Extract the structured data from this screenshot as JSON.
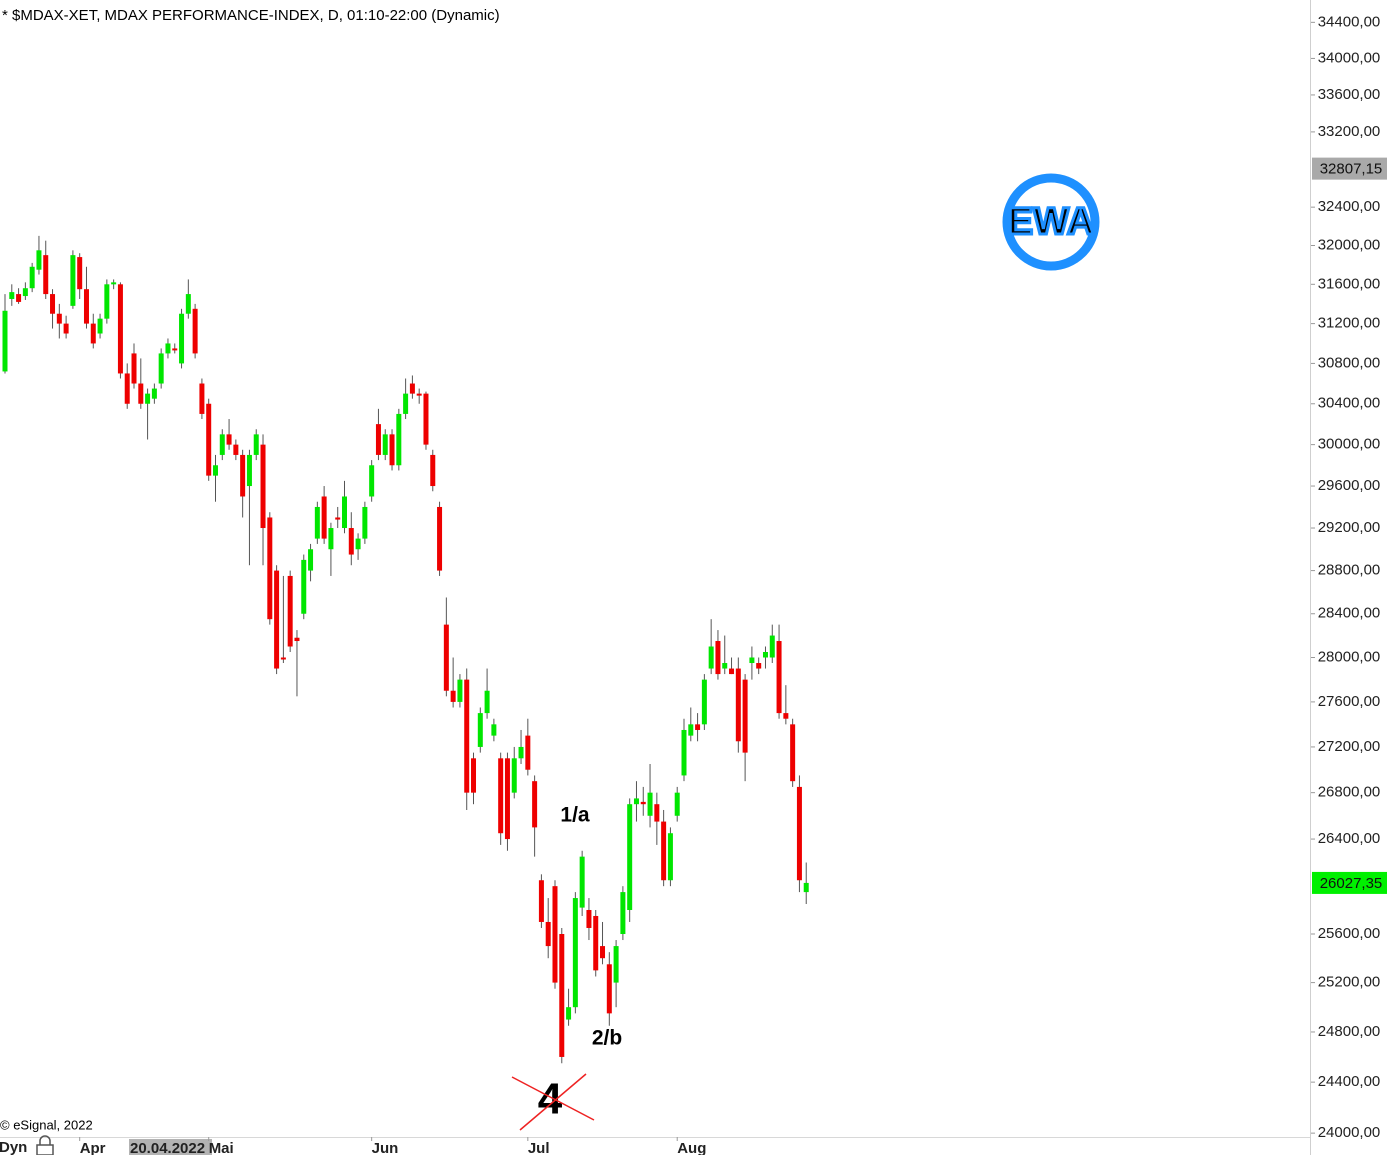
{
  "chart_data": {
    "type": "candlestick",
    "title": "* $MDAX-XET, MDAX PERFORMANCE-INDEX, D, 01:10-22:00 (Dynamic)",
    "copyright": "© eSignal, 2022",
    "interval_label": "Dyn",
    "cursor_date_label": "20.04.2022",
    "logo_text": "EWA",
    "log_scale": true,
    "colors": {
      "up": "#00e600",
      "down": "#ee0000",
      "wick": "#555555"
    },
    "categories": [
      null,
      null,
      null,
      null,
      null,
      null,
      null,
      null,
      null,
      null,
      null,
      null,
      null,
      null,
      null,
      null,
      null,
      null,
      null,
      null,
      null,
      null,
      null,
      null,
      null,
      null,
      null,
      null,
      null,
      null,
      null,
      null,
      null,
      null,
      null,
      null,
      null,
      null,
      null,
      null,
      null,
      null,
      null,
      null,
      null,
      null,
      null,
      null,
      null,
      null,
      null,
      null,
      null,
      null,
      null,
      null,
      null,
      null,
      null,
      null,
      null,
      null,
      null,
      null,
      null,
      null,
      null,
      null,
      null,
      null,
      null,
      null,
      null,
      null,
      null,
      null,
      null,
      null,
      null,
      null,
      null,
      null,
      null,
      null,
      null,
      null,
      null,
      null,
      null,
      null,
      null,
      null,
      null,
      null,
      null,
      null,
      null,
      null,
      null,
      null,
      null,
      null,
      null,
      null,
      null,
      null,
      null,
      null,
      null,
      null,
      null,
      null,
      null,
      null,
      null,
      null,
      null,
      null,
      null
    ],
    "open": [
      30720,
      31450,
      31500,
      31480,
      31560,
      31750,
      31900,
      31500,
      31300,
      31200,
      31380,
      31880,
      31550,
      31200,
      31100,
      31250,
      31600,
      31600,
      30700,
      30900,
      30600,
      30400,
      30450,
      30600,
      30900,
      30950,
      30800,
      31300,
      31350,
      30600,
      30400,
      29700,
      29900,
      30100,
      30000,
      29900,
      29600,
      29900,
      30000,
      29300,
      28800,
      28000,
      28750,
      28180,
      28400,
      28800,
      29100,
      29500,
      29000,
      29300,
      29200,
      29200,
      29000,
      29100,
      29500,
      30200,
      29900,
      30100,
      29800,
      30300,
      30600,
      30500,
      30500,
      29900,
      29400,
      28300,
      27700,
      27600,
      27800,
      27100,
      27200,
      27500,
      27300,
      27100,
      27100,
      26800,
      27100,
      27300,
      26900,
      26050,
      25700,
      26000,
      25600,
      24900,
      25000,
      25820,
      25800,
      25750,
      25500,
      25350,
      25200,
      25600,
      25800,
      26700,
      26720,
      26600,
      26700,
      26550,
      26050,
      26600,
      26950,
      27300,
      27400,
      27400,
      27900,
      28150,
      27900,
      27900,
      27900,
      27800,
      27950,
      27950,
      28000,
      28000,
      28150,
      27500,
      27400,
      26850,
      25950
    ],
    "high": [
      31500,
      31600,
      31560,
      31620,
      31820,
      32100,
      32050,
      31550,
      31400,
      31280,
      31950,
      31920,
      31780,
      31300,
      31300,
      31650,
      31650,
      31620,
      30800,
      31000,
      30850,
      30550,
      30600,
      30950,
      31050,
      31000,
      31350,
      31650,
      31400,
      30650,
      30450,
      29900,
      30150,
      30250,
      30050,
      29950,
      29950,
      30150,
      30100,
      29350,
      28850,
      28750,
      28800,
      28250,
      28950,
      29050,
      29450,
      29600,
      29250,
      29400,
      29650,
      29350,
      29150,
      29450,
      29850,
      30350,
      30150,
      30150,
      30350,
      30650,
      30680,
      30550,
      30520,
      29950,
      29450,
      28550,
      28000,
      27850,
      27900,
      27150,
      27550,
      27900,
      27450,
      27150,
      27150,
      27200,
      27350,
      27450,
      26950,
      26100,
      25900,
      26050,
      25650,
      25150,
      25950,
      26300,
      25900,
      25800,
      25700,
      25450,
      25550,
      26000,
      26750,
      26900,
      26850,
      27050,
      26800,
      26650,
      26500,
      26850,
      27450,
      27550,
      27500,
      27850,
      28350,
      28250,
      28200,
      28000,
      28000,
      27850,
      28100,
      28000,
      28100,
      28300,
      28300,
      27750,
      27450,
      26950,
      26200
    ],
    "low": [
      30700,
      31380,
      31400,
      31440,
      31520,
      31700,
      31450,
      31150,
      31050,
      31050,
      31350,
      31450,
      31150,
      30950,
      31050,
      31200,
      31550,
      30650,
      30350,
      30550,
      30350,
      30050,
      30400,
      30550,
      30850,
      30900,
      30750,
      31250,
      30850,
      30250,
      29650,
      29450,
      29850,
      29950,
      29850,
      29300,
      28850,
      29850,
      28850,
      28300,
      27850,
      27950,
      28050,
      27650,
      28350,
      28700,
      29050,
      29050,
      28750,
      29200,
      29150,
      28850,
      28900,
      29050,
      29450,
      29850,
      29850,
      29750,
      29750,
      30250,
      30450,
      30400,
      29950,
      29550,
      28750,
      27650,
      27550,
      27550,
      26650,
      26700,
      27150,
      27450,
      27250,
      26350,
      26300,
      26750,
      27050,
      26950,
      26250,
      25650,
      25400,
      25150,
      24550,
      24850,
      24950,
      25750,
      25550,
      25250,
      25350,
      24850,
      25000,
      25550,
      25700,
      26550,
      26600,
      26500,
      26350,
      26000,
      26000,
      26550,
      26900,
      27250,
      27250,
      27350,
      27850,
      27800,
      27850,
      27850,
      27150,
      26900,
      27800,
      27850,
      27900,
      27950,
      27450,
      27400,
      26850,
      25950,
      25850
    ],
    "close": [
      31330,
      31520,
      31420,
      31560,
      31780,
      31950,
      31500,
      31300,
      31200,
      31100,
      31900,
      31550,
      31200,
      31000,
      31250,
      31600,
      31620,
      30700,
      30400,
      30600,
      30400,
      30500,
      30550,
      30900,
      31000,
      30930,
      31300,
      31500,
      30900,
      30300,
      29700,
      29800,
      30100,
      30000,
      29900,
      29500,
      29900,
      30100,
      29200,
      28350,
      27900,
      27990,
      28100,
      28150,
      28900,
      29000,
      29400,
      29100,
      29200,
      29280,
      29500,
      28950,
      29100,
      29400,
      29800,
      29900,
      30100,
      29800,
      30300,
      30500,
      30500,
      30480,
      30000,
      29600,
      28800,
      27700,
      27600,
      27800,
      26800,
      26800,
      27500,
      27700,
      27400,
      26450,
      26400,
      27100,
      27200,
      27000,
      26500,
      25700,
      25500,
      25200,
      24600,
      25000,
      25900,
      26250,
      25650,
      25300,
      25400,
      24950,
      25500,
      25950,
      26700,
      26750,
      26700,
      26800,
      26550,
      26050,
      26450,
      26800,
      27350,
      27400,
      27350,
      27800,
      28100,
      27850,
      27950,
      27850,
      27250,
      27150,
      28000,
      27900,
      28050,
      28200,
      27500,
      27450,
      26900,
      26050,
      26027.35
    ],
    "xticks": [
      {
        "value": 11,
        "label": "Apr"
      },
      {
        "value": 30,
        "label": "Mai"
      },
      {
        "value": 54,
        "label": "Jun"
      },
      {
        "value": 77,
        "label": "Jul"
      },
      {
        "value": 99,
        "label": "Aug"
      }
    ],
    "ylim": [
      23970,
      34650
    ],
    "yticks": [
      {
        "value": 34400,
        "label": "34400,00"
      },
      {
        "value": 34000,
        "label": "34000,00"
      },
      {
        "value": 33600,
        "label": "33600,00"
      },
      {
        "value": 33200,
        "label": "33200,00"
      },
      {
        "value": 32400,
        "label": "32400,00"
      },
      {
        "value": 32000,
        "label": "32000,00"
      },
      {
        "value": 31600,
        "label": "31600,00"
      },
      {
        "value": 31200,
        "label": "31200,00"
      },
      {
        "value": 30800,
        "label": "30800,00"
      },
      {
        "value": 30400,
        "label": "30400,00"
      },
      {
        "value": 30000,
        "label": "30000,00"
      },
      {
        "value": 29600,
        "label": "29600,00"
      },
      {
        "value": 29200,
        "label": "29200,00"
      },
      {
        "value": 28800,
        "label": "28800,00"
      },
      {
        "value": 28400,
        "label": "28400,00"
      },
      {
        "value": 28000,
        "label": "28000,00"
      },
      {
        "value": 27600,
        "label": "27600,00"
      },
      {
        "value": 27200,
        "label": "27200,00"
      },
      {
        "value": 26800,
        "label": "26800,00"
      },
      {
        "value": 26400,
        "label": "26400,00"
      },
      {
        "value": 25600,
        "label": "25600,00"
      },
      {
        "value": 25200,
        "label": "25200,00"
      },
      {
        "value": 24800,
        "label": "24800,00"
      },
      {
        "value": 24400,
        "label": "24400,00"
      },
      {
        "value": 24000,
        "label": "24000,00"
      }
    ],
    "price_markers": [
      {
        "value": 32807.15,
        "label": "32807,15",
        "color": "#a9a9a9"
      },
      {
        "value": 26027.35,
        "label": "26027,35",
        "color": "#00f000"
      }
    ],
    "annotations": [
      "1/a",
      "2/b",
      "4"
    ]
  }
}
